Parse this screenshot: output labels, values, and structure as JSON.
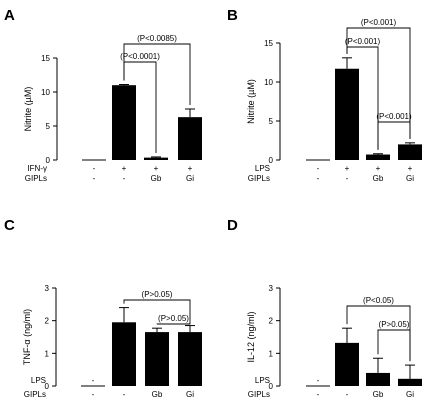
{
  "chart_data": [
    {
      "panel": "A",
      "type": "bar",
      "ylabel": "Nitrite (µM)",
      "ylim": [
        0,
        15
      ],
      "yticks": [
        "0",
        "5",
        "10",
        "15"
      ],
      "rows": [
        {
          "label": "IFN-γ",
          "values": [
            "-",
            "+",
            "+",
            "+"
          ]
        },
        {
          "label": "GIPLs",
          "values": [
            "-",
            "-",
            "Gb",
            "Gi"
          ]
        }
      ],
      "values": [
        0,
        11.0,
        0.35,
        6.3
      ],
      "errors": [
        0,
        0.1,
        0.1,
        1.2
      ],
      "annotations": [
        {
          "text": "(P<0.0085)",
          "from": 1,
          "to": 3
        },
        {
          "text": "(P<0.0001)",
          "from": 1,
          "to": 2
        }
      ]
    },
    {
      "panel": "B",
      "type": "bar",
      "ylabel": "Nitrite (µM)",
      "ylim": [
        0,
        15
      ],
      "yticks": [
        "0",
        "5",
        "10",
        "15"
      ],
      "rows": [
        {
          "label": "LPS",
          "values": [
            "-",
            "+",
            "+",
            "+"
          ]
        },
        {
          "label": "GIPLs",
          "values": [
            "-",
            "-",
            "Gb",
            "Gi"
          ]
        }
      ],
      "values": [
        0,
        11.7,
        0.7,
        2.0
      ],
      "errors": [
        0,
        1.4,
        0.1,
        0.2
      ],
      "annotations": [
        {
          "text": "(P<0.001)",
          "from": 1,
          "to": 3
        },
        {
          "text": "(P<0.001)",
          "from": 1,
          "to": 2
        },
        {
          "text": "(P<0.001)",
          "from": 2,
          "to": 3
        }
      ]
    },
    {
      "panel": "C",
      "type": "bar",
      "ylabel": "TNF-α (ng/ml)",
      "ylim": [
        0,
        3
      ],
      "yticks": [
        "0",
        "1",
        "2",
        "3"
      ],
      "rows": [
        {
          "label": "LPS",
          "values": [
            "-",
            "+",
            "+",
            "+"
          ]
        },
        {
          "label": "GIPLs",
          "values": [
            "-",
            "-",
            "Gb",
            "Gi"
          ]
        }
      ],
      "values": [
        0,
        1.95,
        1.65,
        1.65
      ],
      "errors": [
        0,
        0.45,
        0.12,
        0.2
      ],
      "annotations": [
        {
          "text": "(P>0.05)",
          "from": 1,
          "to": 3
        },
        {
          "text": "(P>0.05)",
          "from": 2,
          "to": 3
        }
      ]
    },
    {
      "panel": "D",
      "type": "bar",
      "ylabel": "IL-12 (ng/ml)",
      "ylim": [
        0,
        3
      ],
      "yticks": [
        "0",
        "1",
        "2",
        "3"
      ],
      "rows": [
        {
          "label": "LPS",
          "values": [
            "-",
            "+",
            "+",
            "+"
          ]
        },
        {
          "label": "GIPLs",
          "values": [
            "-",
            "-",
            "Gb",
            "Gi"
          ]
        }
      ],
      "values": [
        0,
        1.32,
        0.4,
        0.22
      ],
      "errors": [
        0,
        0.45,
        0.45,
        0.42
      ],
      "annotations": [
        {
          "text": "(P<0.05)",
          "from": 1,
          "to": 3
        },
        {
          "text": "(P>0.05)",
          "from": 2,
          "to": 3
        }
      ]
    }
  ]
}
